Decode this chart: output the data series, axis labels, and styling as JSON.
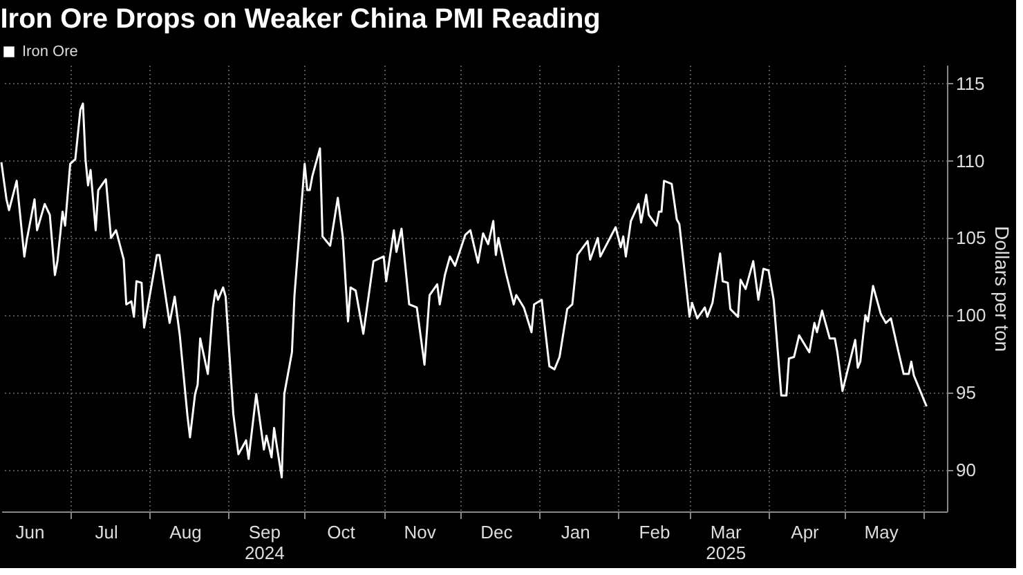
{
  "chart_data": {
    "type": "line",
    "title": "Iron Ore Drops on Weaker China PMI Reading",
    "ylabel": "Dollars per ton",
    "legend": "top left",
    "grid": true,
    "xlim": [
      "2024-06-04",
      "2025-06-10"
    ],
    "xticks": [
      {
        "value": "2024-06-15",
        "label": "Jun"
      },
      {
        "value": "2024-07-01",
        "label": null
      },
      {
        "value": "2024-07-15",
        "label": "Jul"
      },
      {
        "value": "2024-08-01",
        "label": null
      },
      {
        "value": "2024-08-15",
        "label": "Aug"
      },
      {
        "value": "2024-09-01",
        "label": null
      },
      {
        "value": "2024-09-15",
        "label": "Sep\n2024"
      },
      {
        "value": "2024-10-01",
        "label": null
      },
      {
        "value": "2024-10-15",
        "label": "Oct"
      },
      {
        "value": "2024-11-01",
        "label": null
      },
      {
        "value": "2024-11-15",
        "label": "Nov"
      },
      {
        "value": "2024-12-01",
        "label": null
      },
      {
        "value": "2024-12-15",
        "label": "Dec"
      },
      {
        "value": "2025-01-01",
        "label": null
      },
      {
        "value": "2025-01-15",
        "label": "Jan"
      },
      {
        "value": "2025-02-01",
        "label": null
      },
      {
        "value": "2025-02-15",
        "label": "Feb"
      },
      {
        "value": "2025-03-01",
        "label": null
      },
      {
        "value": "2025-03-15",
        "label": "Mar\n2025"
      },
      {
        "value": "2025-04-01",
        "label": null
      },
      {
        "value": "2025-04-15",
        "label": "Apr"
      },
      {
        "value": "2025-05-01",
        "label": null
      },
      {
        "value": "2025-05-15",
        "label": "May"
      },
      {
        "value": "2025-06-01",
        "label": null
      }
    ],
    "ylim": [
      87.3,
      116.2
    ],
    "yticks": [
      90,
      95,
      100,
      105,
      110,
      115
    ],
    "x": [
      "2024-06-04",
      "2024-06-06",
      "2024-06-07",
      "2024-06-10",
      "2024-06-13",
      "2024-06-14",
      "2024-06-17",
      "2024-06-18",
      "2024-06-21",
      "2024-06-23",
      "2024-06-25",
      "2024-06-26",
      "2024-06-28",
      "2024-06-29",
      "2024-07-01",
      "2024-07-03",
      "2024-07-05",
      "2024-07-06",
      "2024-07-07",
      "2024-07-08",
      "2024-07-09",
      "2024-07-11",
      "2024-07-12",
      "2024-07-15",
      "2024-07-17",
      "2024-07-19",
      "2024-07-22",
      "2024-07-23",
      "2024-07-25",
      "2024-07-26",
      "2024-07-27",
      "2024-07-29",
      "2024-07-30",
      "2024-08-04",
      "2024-08-05",
      "2024-08-09",
      "2024-08-11",
      "2024-08-13",
      "2024-08-16",
      "2024-08-17",
      "2024-08-19",
      "2024-08-20",
      "2024-08-21",
      "2024-08-24",
      "2024-08-26",
      "2024-08-27",
      "2024-08-28",
      "2024-08-30",
      "2024-08-31",
      "2024-09-03",
      "2024-09-05",
      "2024-09-08",
      "2024-09-09",
      "2024-09-12",
      "2024-09-15",
      "2024-09-16",
      "2024-09-18",
      "2024-09-19",
      "2024-09-20",
      "2024-09-22",
      "2024-09-23",
      "2024-09-26",
      "2024-09-27",
      "2024-10-01",
      "2024-10-02",
      "2024-10-03",
      "2024-10-04",
      "2024-10-07",
      "2024-10-08",
      "2024-10-11",
      "2024-10-14",
      "2024-10-16",
      "2024-10-18",
      "2024-10-19",
      "2024-10-21",
      "2024-10-24",
      "2024-10-28",
      "2024-11-01",
      "2024-11-02",
      "2024-11-05",
      "2024-11-06",
      "2024-11-08",
      "2024-11-11",
      "2024-11-14",
      "2024-11-17",
      "2024-11-19",
      "2024-11-22",
      "2024-11-23",
      "2024-11-25",
      "2024-11-27",
      "2024-11-29",
      "2024-12-03",
      "2024-12-05",
      "2024-12-08",
      "2024-12-10",
      "2024-12-12",
      "2024-12-14",
      "2024-12-15",
      "2024-12-16",
      "2024-12-19",
      "2024-12-22",
      "2024-12-23",
      "2024-12-26",
      "2024-12-29",
      "2024-12-30",
      "2025-01-02",
      "2025-01-05",
      "2025-01-07",
      "2025-01-09",
      "2025-01-12",
      "2025-01-14",
      "2025-01-16",
      "2025-01-20",
      "2025-01-21",
      "2025-01-24",
      "2025-01-25",
      "2025-01-31",
      "2025-02-02",
      "2025-02-03",
      "2025-02-04",
      "2025-02-06",
      "2025-02-09",
      "2025-02-10",
      "2025-02-12",
      "2025-02-13",
      "2025-02-16",
      "2025-02-17",
      "2025-02-18",
      "2025-02-19",
      "2025-02-22",
      "2025-02-24",
      "2025-02-25",
      "2025-03-01",
      "2025-03-02",
      "2025-03-04",
      "2025-03-07",
      "2025-03-08",
      "2025-03-10",
      "2025-03-13",
      "2025-03-14",
      "2025-03-16",
      "2025-03-17",
      "2025-03-20",
      "2025-03-21",
      "2025-03-23",
      "2025-03-26",
      "2025-03-28",
      "2025-03-30",
      "2025-04-01",
      "2025-04-03",
      "2025-04-06",
      "2025-04-08",
      "2025-04-09",
      "2025-04-11",
      "2025-04-13",
      "2025-04-17",
      "2025-04-19",
      "2025-04-20",
      "2025-04-22",
      "2025-04-25",
      "2025-04-27",
      "2025-04-28",
      "2025-04-30",
      "2025-05-05",
      "2025-05-06",
      "2025-05-07",
      "2025-05-09",
      "2025-05-10",
      "2025-05-12",
      "2025-05-13",
      "2025-05-15",
      "2025-05-17",
      "2025-05-19",
      "2025-05-22",
      "2025-05-24",
      "2025-05-26",
      "2025-05-27",
      "2025-05-28",
      "2025-05-30",
      "2025-06-02"
    ],
    "series": [
      {
        "name": "Iron Ore",
        "color": "#ffffff",
        "values": [
          109.9,
          107.5,
          106.8,
          108.7,
          103.8,
          104.9,
          107.5,
          105.5,
          107.2,
          106.5,
          102.6,
          103.5,
          106.7,
          105.8,
          109.8,
          110.1,
          113.3,
          113.7,
          110.1,
          108.4,
          109.4,
          105.5,
          108.1,
          108.8,
          105.0,
          105.5,
          103.6,
          100.7,
          100.9,
          99.9,
          102.2,
          102.1,
          99.2,
          103.9,
          103.9,
          99.5,
          101.2,
          98.7,
          93.5,
          92.1,
          94.9,
          95.5,
          98.5,
          96.2,
          100.5,
          101.6,
          101.0,
          101.8,
          101.2,
          93.6,
          91.0,
          91.9,
          90.7,
          94.9,
          91.3,
          92.2,
          90.8,
          92.7,
          91.6,
          89.5,
          94.9,
          97.6,
          101.3,
          109.8,
          108.1,
          108.1,
          109.0,
          110.8,
          105.1,
          104.5,
          107.6,
          105.0,
          99.6,
          101.8,
          101.6,
          98.8,
          103.5,
          103.8,
          102.2,
          105.5,
          104.1,
          105.6,
          100.7,
          100.5,
          96.8,
          101.3,
          102.0,
          100.7,
          102.6,
          103.8,
          103.2,
          105.2,
          105.5,
          103.4,
          105.3,
          104.6,
          106.1,
          103.9,
          105.0,
          102.7,
          100.7,
          101.3,
          100.5,
          98.9,
          100.7,
          101.0,
          96.7,
          96.5,
          97.3,
          100.4,
          100.7,
          103.9,
          104.8,
          103.6,
          105.0,
          103.8,
          105.7,
          104.4,
          105.1,
          103.8,
          106.1,
          107.2,
          106.0,
          107.8,
          106.5,
          105.8,
          106.7,
          106.7,
          108.7,
          108.5,
          106.2,
          105.9,
          99.9,
          100.8,
          99.8,
          100.5,
          99.9,
          100.8,
          104.0,
          102.2,
          102.1,
          100.4,
          99.9,
          102.3,
          101.7,
          103.5,
          101.0,
          103.0,
          102.9,
          101.0,
          94.8,
          94.8,
          97.2,
          97.3,
          98.7,
          97.6,
          99.5,
          98.9,
          100.3,
          98.5,
          98.5,
          97.6,
          95.1,
          98.4,
          96.6,
          97.0,
          100.0,
          99.6,
          101.9,
          101.3,
          100.1,
          99.5,
          99.8,
          97.6,
          96.2,
          96.2,
          97.0,
          96.1,
          95.3,
          94.1
        ]
      }
    ]
  }
}
